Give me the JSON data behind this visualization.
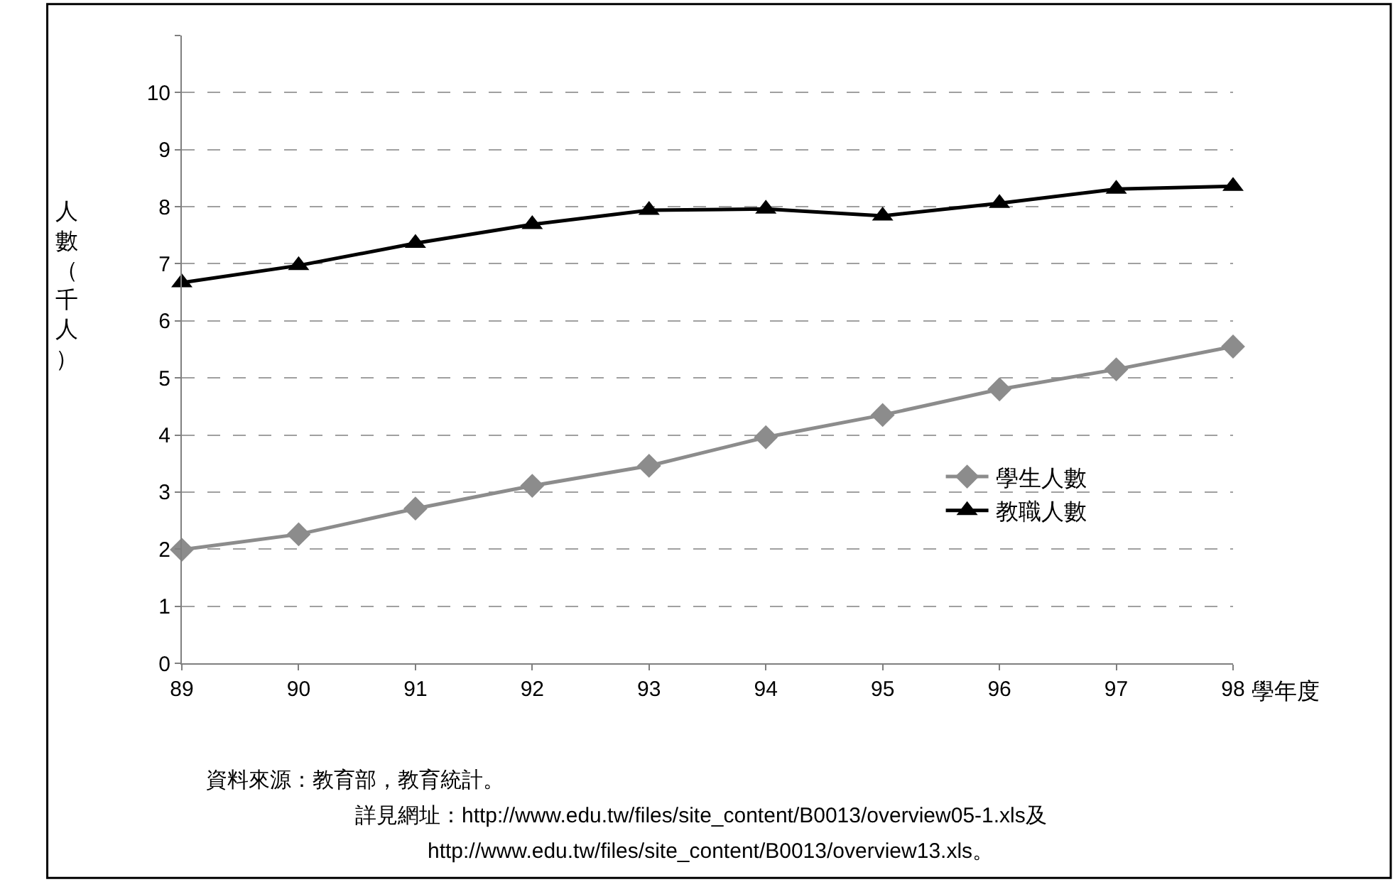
{
  "chart_data": {
    "type": "line",
    "xlabel": "學年度",
    "ylabel": "人數（千人）",
    "x": [
      89,
      90,
      91,
      92,
      93,
      94,
      95,
      96,
      97,
      98
    ],
    "xlim": [
      89,
      98
    ],
    "xticks": [
      89,
      90,
      91,
      92,
      93,
      94,
      95,
      96,
      97,
      98
    ],
    "ylim": [
      0,
      11
    ],
    "yticks": [
      0,
      1,
      2,
      3,
      4,
      5,
      6,
      7,
      8,
      9,
      10,
      {
        "value": 11,
        "label": null
      }
    ],
    "grid": "y",
    "legend": "right",
    "series": [
      {
        "name": "學生人數",
        "color": "#8c8c8c",
        "marker": "diamond",
        "values": [
          1.99,
          2.26,
          2.71,
          3.11,
          3.46,
          3.96,
          4.35,
          4.8,
          5.15,
          5.55
        ]
      },
      {
        "name": "教職人數",
        "color": "#000000",
        "marker": "triangle",
        "values": [
          6.67,
          6.97,
          7.36,
          7.69,
          7.94,
          7.96,
          7.84,
          8.06,
          8.31,
          8.36
        ]
      }
    ],
    "annotations": [
      "資料來源：教育部，教育統計。",
      "詳見網址：http://www.edu.tw/files/site_content/B0013/overview05-1.xls及",
      "http://www.edu.tw/files/site_content/B0013/overview13.xls。"
    ]
  }
}
